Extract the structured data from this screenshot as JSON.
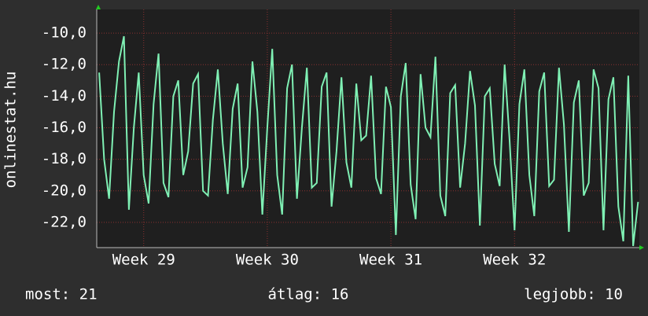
{
  "chart_data": {
    "type": "line",
    "y_label": "onlinestat.hu",
    "x": [
      28.64,
      28.68,
      28.72,
      28.76,
      28.8,
      28.84,
      28.88,
      28.92,
      28.96,
      29,
      29.04,
      29.08,
      29.12,
      29.16,
      29.2,
      29.24,
      29.28,
      29.32,
      29.36,
      29.4,
      29.44,
      29.48,
      29.52,
      29.56,
      29.6,
      29.64,
      29.68,
      29.72,
      29.76,
      29.8,
      29.84,
      29.88,
      29.92,
      29.96,
      30,
      30.04,
      30.08,
      30.12,
      30.16,
      30.2,
      30.24,
      30.28,
      30.32,
      30.36,
      30.4,
      30.44,
      30.48,
      30.52,
      30.56,
      30.6,
      30.64,
      30.68,
      30.72,
      30.76,
      30.8,
      30.84,
      30.88,
      30.92,
      30.96,
      31,
      31.04,
      31.08,
      31.12,
      31.16,
      31.2,
      31.24,
      31.28,
      31.32,
      31.36,
      31.4,
      31.44,
      31.48,
      31.52,
      31.56,
      31.6,
      31.64,
      31.68,
      31.72,
      31.76,
      31.8,
      31.84,
      31.88,
      31.92,
      31.96,
      32,
      32.04,
      32.08,
      32.12,
      32.16,
      32.2,
      32.24,
      32.28,
      32.32,
      32.36,
      32.4,
      32.44,
      32.48,
      32.52,
      32.56,
      32.6,
      32.64,
      32.68,
      32.72,
      32.76,
      32.8,
      32.84,
      32.88,
      32.92,
      32.96,
      33
    ],
    "series": [
      {
        "color": "#7ff0b4",
        "values": [
          -12.5,
          -18,
          -20.5,
          -15,
          -11.8,
          -10.2,
          -21.2,
          -16,
          -12.5,
          -19,
          -20.8,
          -14.5,
          -11.3,
          -19.5,
          -20.4,
          -14,
          -13,
          -19,
          -17.5,
          -13.2,
          -12.6,
          -20,
          -20.3,
          -15.5,
          -12.3,
          -17,
          -20.2,
          -14.8,
          -13.2,
          -19.8,
          -18.5,
          -11.8,
          -15,
          -21.5,
          -16,
          -11,
          -19,
          -21.5,
          -13.5,
          -12,
          -20.5,
          -16,
          -12.2,
          -19.8,
          -19.5,
          -13.4,
          -12.5,
          -21,
          -17.5,
          -12.8,
          -18.2,
          -19.8,
          -13.2,
          -16.8,
          -16.5,
          -12.7,
          -19.2,
          -20.2,
          -13.4,
          -14.7,
          -22.8,
          -14,
          -11.9,
          -19.6,
          -21.8,
          -12.6,
          -16,
          -16.6,
          -11.5,
          -20.3,
          -21.6,
          -13.8,
          -13.3,
          -19.8,
          -17,
          -12.4,
          -14.6,
          -22.2,
          -14,
          -13.5,
          -18.3,
          -19.7,
          -12,
          -16.8,
          -22.5,
          -14.5,
          -12.3,
          -19,
          -21.6,
          -13.7,
          -12.5,
          -19.7,
          -19.3,
          -12.2,
          -15.8,
          -22.6,
          -14.4,
          -13,
          -20.3,
          -19.5,
          -12.3,
          -13.5,
          -22.5,
          -14.2,
          -12.8,
          -21,
          -23.2,
          -12.7,
          -23.5,
          -20.7
        ]
      }
    ],
    "xlim": [
      28.62,
      33.01
    ],
    "xticks": [
      {
        "value": 29,
        "label": "Week 29"
      },
      {
        "value": 30,
        "label": "Week 30"
      },
      {
        "value": 31,
        "label": "Week 31"
      },
      {
        "value": 32,
        "label": "Week 32"
      }
    ],
    "ylim": [
      -23.6,
      -8.5
    ],
    "yticks": [
      {
        "value": -10,
        "label": "-10,0"
      },
      {
        "value": -12,
        "label": "-12,0"
      },
      {
        "value": -14,
        "label": "-14,0"
      },
      {
        "value": -16,
        "label": "-16,0"
      },
      {
        "value": -18,
        "label": "-18,0"
      },
      {
        "value": -20,
        "label": "-20,0"
      },
      {
        "value": -22,
        "label": "-22,0"
      }
    ],
    "grid": true,
    "footer": [
      "most: 21",
      "átlag: 16",
      "legjobb: 10"
    ]
  }
}
